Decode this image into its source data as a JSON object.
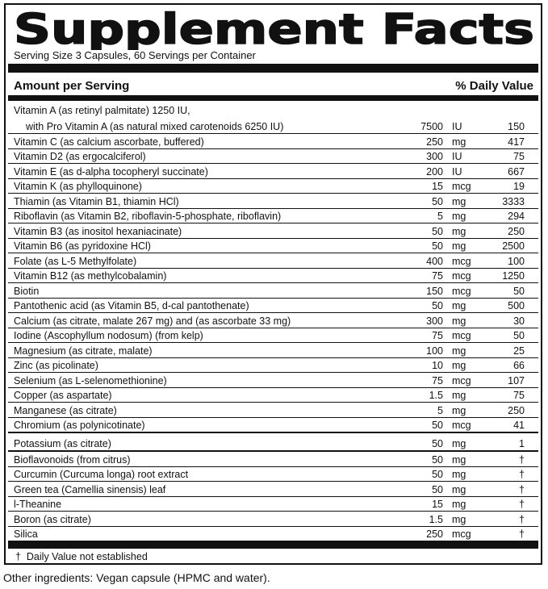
{
  "title": "Supplement Facts",
  "serving": "Serving Size  3 Capsules, 60 Servings per Container",
  "header": {
    "amount": "Amount per Serving",
    "dv": "% Daily Value"
  },
  "sections": [
    {
      "rows": [
        {
          "name": "Vitamin A (as retinyl palmitate) 1250 IU,",
          "name_2": "with Pro Vitamin A (as natural mixed carotenoids 6250 IU)",
          "amount": "7500",
          "unit": "IU",
          "dv": "150"
        },
        {
          "name": "Vitamin C (as calcium ascorbate, buffered)",
          "amount": "250",
          "unit": "mg",
          "dv": "417"
        },
        {
          "name": "Vitamin D2 (as ergocalciferol)",
          "amount": "300",
          "unit": "IU",
          "dv": "75"
        },
        {
          "name": "Vitamin E (as d-alpha tocopheryl succinate)",
          "amount": "200",
          "unit": "IU",
          "dv": "667"
        },
        {
          "name": "Vitamin K (as phylloquinone)",
          "amount": "15",
          "unit": "mcg",
          "dv": "19"
        },
        {
          "name": "Thiamin (as Vitamin B1, thiamin HCl)",
          "amount": "50",
          "unit": "mg",
          "dv": "3333"
        },
        {
          "name": "Riboflavin (as Vitamin B2, riboflavin-5-phosphate, riboflavin)",
          "amount": "5",
          "unit": "mg",
          "dv": "294"
        },
        {
          "name": "Vitamin B3 (as inositol hexaniacinate)",
          "amount": "50",
          "unit": "mg",
          "dv": "250"
        },
        {
          "name": "Vitamin B6 (as pyridoxine HCl)",
          "amount": "50",
          "unit": "mg",
          "dv": "2500"
        },
        {
          "name": "Folate (as L-5 Methylfolate)",
          "amount": "400",
          "unit": "mcg",
          "dv": "100"
        },
        {
          "name": "Vitamin B12 (as methylcobalamin)",
          "amount": "75",
          "unit": "mcg",
          "dv": "1250"
        },
        {
          "name": "Biotin",
          "amount": "150",
          "unit": "mcg",
          "dv": "50"
        },
        {
          "name": "Pantothenic acid (as Vitamin B5, d-cal pantothenate)",
          "amount": "50",
          "unit": "mg",
          "dv": "500"
        },
        {
          "name": "Calcium (as citrate, malate 267 mg) and (as ascorbate 33 mg)",
          "amount": "300",
          "unit": "mg",
          "dv": "30"
        },
        {
          "name": "Iodine (Ascophyllum nodosum) (from kelp)",
          "amount": "75",
          "unit": "mcg",
          "dv": "50"
        },
        {
          "name": "Magnesium (as citrate, malate)",
          "amount": "100",
          "unit": "mg",
          "dv": "25"
        },
        {
          "name": "Zinc (as picolinate)",
          "amount": "10",
          "unit": "mg",
          "dv": "66"
        },
        {
          "name": "Selenium (as L-selenomethionine)",
          "amount": "75",
          "unit": "mcg",
          "dv": "107"
        },
        {
          "name": "Copper (as aspartate)",
          "amount": "1.5",
          "unit": "mg",
          "dv": "75"
        },
        {
          "name": "Manganese (as citrate)",
          "amount": "5",
          "unit": "mg",
          "dv": "250"
        },
        {
          "name": "Chromium (as polynicotinate)",
          "amount": "50",
          "unit": "mcg",
          "dv": "41"
        },
        {
          "name": "Potassium (as citrate)",
          "amount": "50",
          "unit": "mg",
          "dv": "1"
        }
      ]
    },
    {
      "rows": [
        {
          "name": "Bioflavonoids (from citrus)",
          "amount": "50",
          "unit": "mg",
          "dv": "†"
        },
        {
          "name": "Curcumin (Curcuma longa) root extract",
          "amount": "50",
          "unit": "mg",
          "dv": "†"
        },
        {
          "name": "Green tea (Camellia sinensis) leaf",
          "amount": "50",
          "unit": "mg",
          "dv": "†"
        },
        {
          "name": "l-Theanine",
          "amount": "15",
          "unit": "mg",
          "dv": "†"
        },
        {
          "name": "Boron (as citrate)",
          "amount": "1.5",
          "unit": "mg",
          "dv": "†"
        },
        {
          "name": "Silica",
          "amount": "250",
          "unit": "mcg",
          "dv": "†"
        }
      ]
    }
  ],
  "footnote": {
    "symbol": "†",
    "text": "Daily Value not established"
  },
  "other_ingredients": "Other ingredients: Vegan capsule (HPMC and water)."
}
